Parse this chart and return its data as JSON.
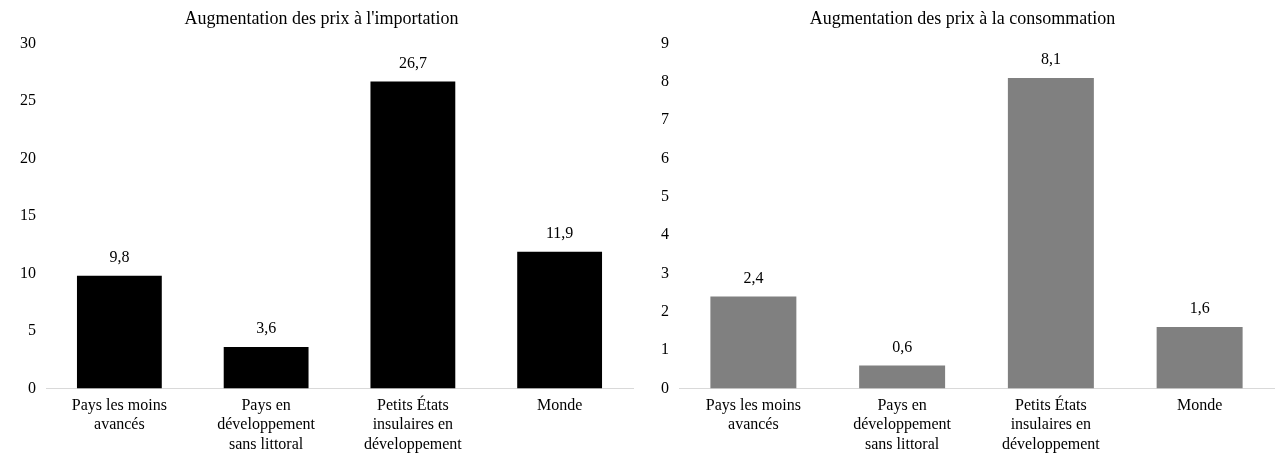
{
  "chart_data": [
    {
      "type": "bar",
      "title": "Augmentation des prix à l'importation",
      "categories": [
        "Pays les moins avancés",
        "Pays en développement sans littoral",
        "Petits États insulaires en développement",
        "Monde"
      ],
      "values": [
        9.8,
        3.6,
        26.7,
        11.9
      ],
      "value_labels": [
        "9,8",
        "3,6",
        "26,7",
        "11,9"
      ],
      "color": "#000000",
      "ylim": [
        0,
        30
      ],
      "yticks": [
        0,
        5,
        10,
        15,
        20,
        25,
        30
      ],
      "grid": false,
      "legend": false
    },
    {
      "type": "bar",
      "title": "Augmentation des prix à la consommation",
      "categories": [
        "Pays les moins avancés",
        "Pays en développement sans littoral",
        "Petits États insulaires en développement",
        "Monde"
      ],
      "values": [
        2.4,
        0.6,
        8.1,
        1.6
      ],
      "value_labels": [
        "2,4",
        "0,6",
        "8,1",
        "1,6"
      ],
      "color": "#808080",
      "ylim": [
        0,
        9
      ],
      "yticks": [
        0,
        1,
        2,
        3,
        4,
        5,
        6,
        7,
        8,
        9
      ],
      "grid": false,
      "legend": false
    }
  ]
}
